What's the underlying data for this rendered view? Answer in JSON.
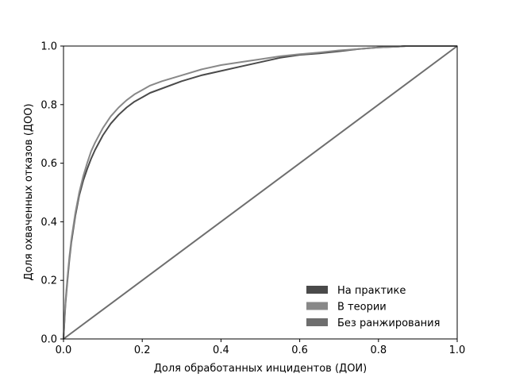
{
  "chart_data": {
    "type": "line",
    "title": "",
    "xlabel": "Доля обработанных инцидентов (ДОИ)",
    "ylabel": "Доля охваченных отказов (ДОО)",
    "xlim": [
      0.0,
      1.0
    ],
    "ylim": [
      0.0,
      1.0
    ],
    "xticks": [
      "0.0",
      "0.2",
      "0.4",
      "0.6",
      "0.8",
      "1.0"
    ],
    "yticks": [
      "0.0",
      "0.2",
      "0.4",
      "0.6",
      "0.8",
      "1.0"
    ],
    "grid": false,
    "legend_position": "lower-right",
    "series": [
      {
        "name": "На практике",
        "color": "#4a4a4a",
        "x": [
          0,
          0.005,
          0.01,
          0.015,
          0.02,
          0.03,
          0.04,
          0.05,
          0.06,
          0.07,
          0.08,
          0.1,
          0.12,
          0.14,
          0.16,
          0.18,
          0.2,
          0.22,
          0.25,
          0.3,
          0.35,
          0.4,
          0.45,
          0.5,
          0.55,
          0.6,
          0.65,
          0.7,
          0.75,
          0.8,
          0.85,
          0.87,
          0.9,
          1.0
        ],
        "y": [
          0,
          0.12,
          0.2,
          0.27,
          0.33,
          0.42,
          0.49,
          0.54,
          0.58,
          0.615,
          0.645,
          0.695,
          0.735,
          0.765,
          0.79,
          0.81,
          0.825,
          0.84,
          0.855,
          0.88,
          0.9,
          0.915,
          0.93,
          0.945,
          0.96,
          0.97,
          0.975,
          0.982,
          0.99,
          0.995,
          0.998,
          1.0,
          1.0,
          1.0
        ]
      },
      {
        "name": "В теории",
        "color": "#888888",
        "x": [
          0,
          0.005,
          0.01,
          0.015,
          0.02,
          0.03,
          0.04,
          0.05,
          0.06,
          0.07,
          0.08,
          0.1,
          0.12,
          0.14,
          0.16,
          0.18,
          0.2,
          0.22,
          0.25,
          0.3,
          0.35,
          0.4,
          0.45,
          0.5,
          0.55,
          0.6,
          0.65,
          0.7,
          0.75,
          0.8,
          0.85,
          0.87,
          0.9,
          1.0
        ],
        "y": [
          0,
          0.13,
          0.21,
          0.28,
          0.34,
          0.43,
          0.5,
          0.555,
          0.6,
          0.64,
          0.67,
          0.72,
          0.76,
          0.79,
          0.815,
          0.835,
          0.85,
          0.865,
          0.88,
          0.9,
          0.92,
          0.935,
          0.945,
          0.955,
          0.965,
          0.972,
          0.978,
          0.985,
          0.99,
          0.995,
          0.998,
          1.0,
          1.0,
          1.0
        ]
      },
      {
        "name": "Без ранжирования",
        "color": "#6e6e6e",
        "x": [
          0,
          1.0
        ],
        "y": [
          0,
          1.0
        ]
      }
    ]
  }
}
